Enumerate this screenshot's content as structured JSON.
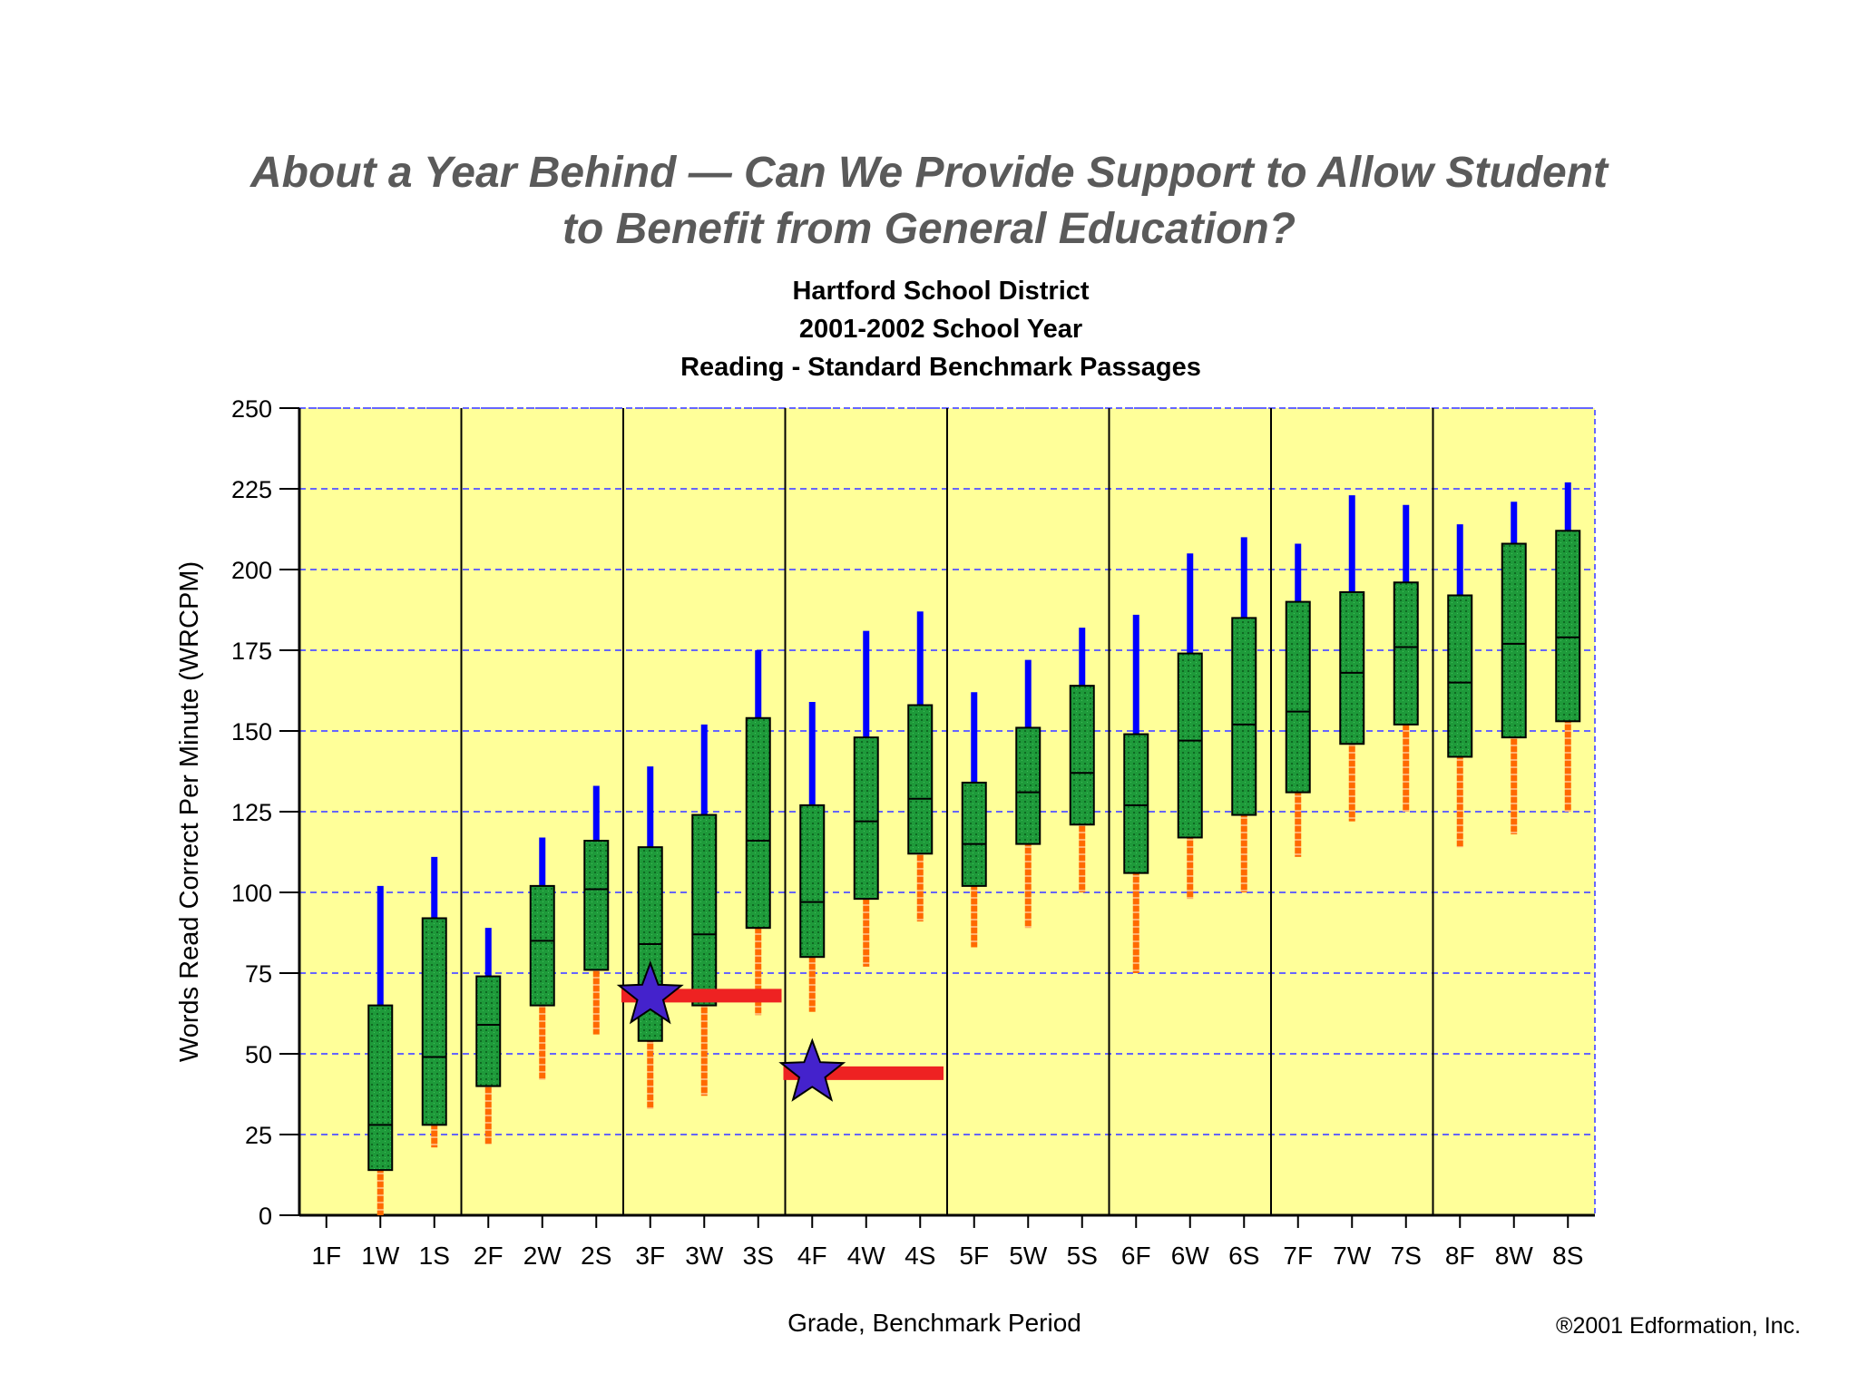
{
  "slide": {
    "title_line1": "About a Year Behind — Can We Provide Support to Allow Student",
    "title_line2": "to Benefit from General Education?"
  },
  "chart_data": {
    "type": "boxplot",
    "title_lines": [
      "Hartford School District",
      "2001-2002 School Year",
      "Reading - Standard Benchmark Passages"
    ],
    "xlabel": "Grade, Benchmark Period",
    "ylabel": "Words Read Correct Per Minute (WRCPM)",
    "copyright": "®2001 Edformation, Inc.",
    "ylim": [
      0,
      250
    ],
    "yticks": [
      0,
      25,
      50,
      75,
      100,
      125,
      150,
      175,
      200,
      225,
      250
    ],
    "grid": true,
    "categories": [
      "1F",
      "1W",
      "1S",
      "2F",
      "2W",
      "2S",
      "3F",
      "3W",
      "3S",
      "4F",
      "4W",
      "4S",
      "5F",
      "5W",
      "5S",
      "6F",
      "6W",
      "6S",
      "7F",
      "7W",
      "7S",
      "8F",
      "8W",
      "8S"
    ],
    "boxes": [
      null,
      {
        "low": 0,
        "q1": 14,
        "median": 28,
        "q3": 65,
        "high": 102
      },
      {
        "low": 21,
        "q1": 28,
        "median": 49,
        "q3": 92,
        "high": 111
      },
      {
        "low": 22,
        "q1": 40,
        "median": 59,
        "q3": 74,
        "high": 89
      },
      {
        "low": 42,
        "q1": 65,
        "median": 85,
        "q3": 102,
        "high": 117
      },
      {
        "low": 56,
        "q1": 76,
        "median": 101,
        "q3": 116,
        "high": 133
      },
      {
        "low": 33,
        "q1": 54,
        "median": 84,
        "q3": 114,
        "high": 139
      },
      {
        "low": 37,
        "q1": 65,
        "median": 87,
        "q3": 124,
        "high": 152
      },
      {
        "low": 62,
        "q1": 89,
        "median": 116,
        "q3": 154,
        "high": 175
      },
      {
        "low": 63,
        "q1": 80,
        "median": 97,
        "q3": 127,
        "high": 159
      },
      {
        "low": 77,
        "q1": 98,
        "median": 122,
        "q3": 148,
        "high": 181
      },
      {
        "low": 91,
        "q1": 112,
        "median": 129,
        "q3": 158,
        "high": 187
      },
      {
        "low": 83,
        "q1": 102,
        "median": 115,
        "q3": 134,
        "high": 162
      },
      {
        "low": 89,
        "q1": 115,
        "median": 131,
        "q3": 151,
        "high": 172
      },
      {
        "low": 100,
        "q1": 121,
        "median": 137,
        "q3": 164,
        "high": 182
      },
      {
        "low": 75,
        "q1": 106,
        "median": 127,
        "q3": 149,
        "high": 186
      },
      {
        "low": 98,
        "q1": 117,
        "median": 147,
        "q3": 174,
        "high": 205
      },
      {
        "low": 100,
        "q1": 124,
        "median": 152,
        "q3": 185,
        "high": 210
      },
      {
        "low": 111,
        "q1": 131,
        "median": 156,
        "q3": 190,
        "high": 208
      },
      {
        "low": 122,
        "q1": 146,
        "median": 168,
        "q3": 193,
        "high": 223
      },
      {
        "low": 125,
        "q1": 152,
        "median": 176,
        "q3": 196,
        "high": 220
      },
      {
        "low": 114,
        "q1": 142,
        "median": 165,
        "q3": 192,
        "high": 214
      },
      {
        "low": 118,
        "q1": 148,
        "median": 177,
        "q3": 208,
        "high": 221
      },
      {
        "low": 125,
        "q1": 153,
        "median": 179,
        "q3": 212,
        "high": 227
      }
    ],
    "student_scores": [
      {
        "category": "3F",
        "value": 68
      },
      {
        "category": "4F",
        "value": 44
      }
    ],
    "reference_lines": [
      {
        "from": "3F",
        "to": "3S",
        "value": 68
      },
      {
        "from": "4F",
        "to": "4S",
        "value": 44
      }
    ],
    "colors": {
      "plot_background": "#ffff99",
      "box_fill": "#1e9a3a",
      "upper_whisker": "#0000ff",
      "lower_whisker": "#ff6a00",
      "reference_line": "#ee2222",
      "star": "#4422cc",
      "grid": "#6666ff"
    }
  }
}
